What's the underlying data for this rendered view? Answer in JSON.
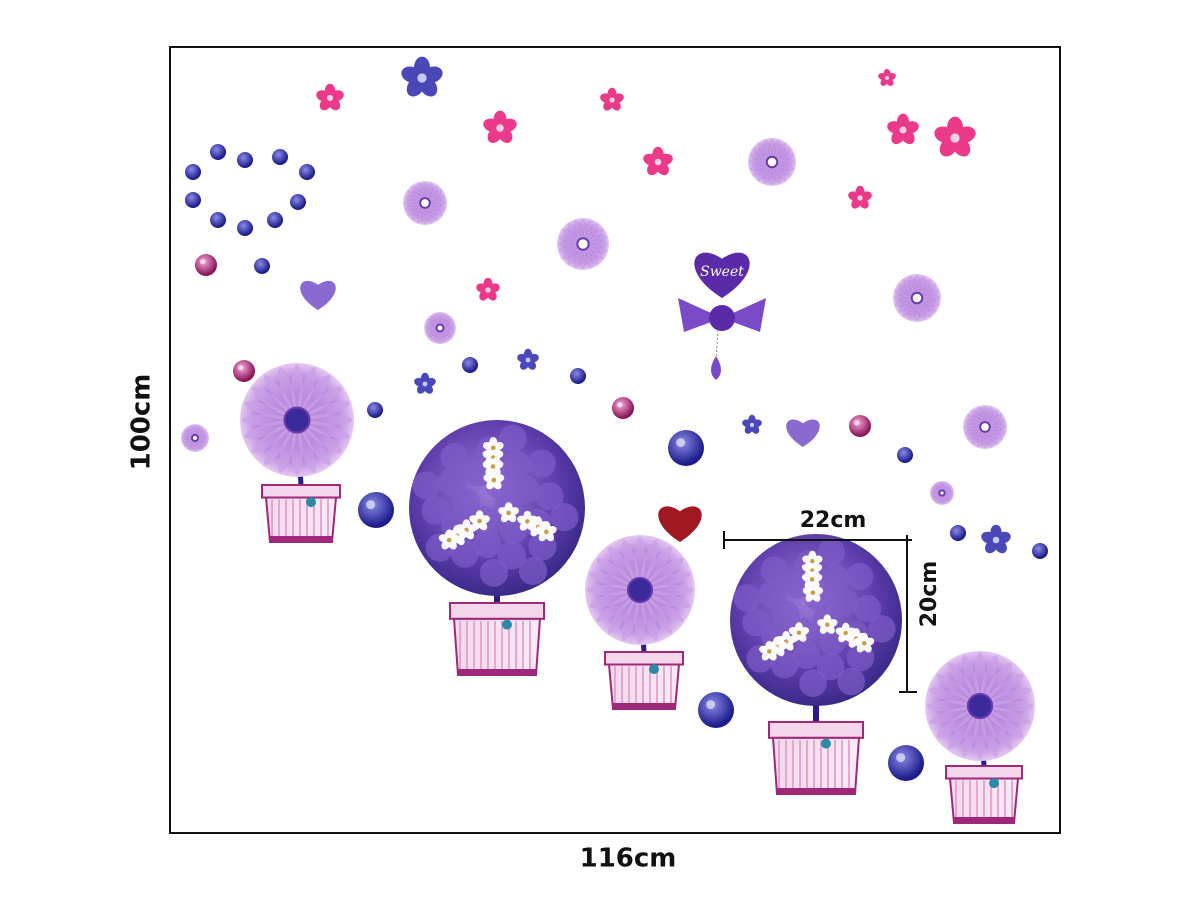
{
  "dimensions": {
    "height": "100cm",
    "width": "116cm",
    "sample_width": "22cm",
    "sample_height": "20cm"
  },
  "decal_text": "Sweet"
}
